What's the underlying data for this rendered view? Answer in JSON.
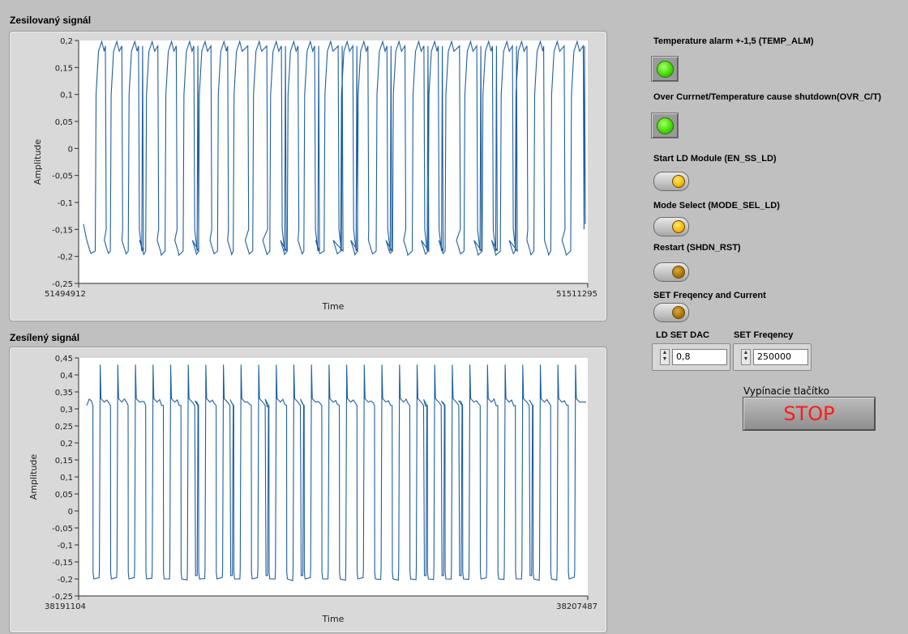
{
  "graph1": {
    "title": "Zesilovaný signál",
    "ylabel": "Amplitude",
    "xlabel": "Time",
    "xmin_label": "51494912",
    "xmax_label": "51511295",
    "yticks": [
      "0,2",
      "0,15",
      "0,1",
      "0,05",
      "0",
      "-0,05",
      "-0,1",
      "-0,15",
      "-0,2",
      "-0,25"
    ],
    "ylim": [
      -0.25,
      0.2
    ],
    "line_color": "#1f5f9f"
  },
  "graph2": {
    "title": "Zesílený signál",
    "ylabel": "Amplitude",
    "xlabel": "Time",
    "xmin_label": "38191104",
    "xmax_label": "38207487",
    "yticks": [
      "0,45",
      "0,4",
      "0,35",
      "0,3",
      "0,25",
      "0,2",
      "0,15",
      "0,1",
      "0,05",
      "0",
      "-0,05",
      "-0,1",
      "-0,15",
      "-0,2",
      "-0,25"
    ],
    "ylim": [
      -0.25,
      0.45
    ],
    "line_color": "#1f5f9f"
  },
  "indicators": {
    "temp_alarm_label": "Temperature alarm +-1,5 (TEMP_ALM)",
    "overcurrent_label": "Over Currnet/Temperature  cause shutdown(OVR_C/T)",
    "led_color": "#44dd00"
  },
  "buttons": {
    "start_ld_label": "Start LD Module (EN_SS_LD)",
    "start_ld_state": "on",
    "mode_select_label": "Mode Select (MODE_SEL_LD)",
    "mode_select_state": "on",
    "restart_label": "Restart (SHDN_RST)",
    "restart_state": "off",
    "set_freq_current_label": "SET Freqency and Current",
    "set_freq_current_state": "off"
  },
  "numerics": {
    "ld_set_dac_label": "LD SET DAC",
    "ld_set_dac_value": "0,8",
    "set_freq_label": "SET Freqency",
    "set_freq_value": "250000"
  },
  "stop": {
    "caption": "Vypínacie tlačítko",
    "label": "STOP"
  }
}
